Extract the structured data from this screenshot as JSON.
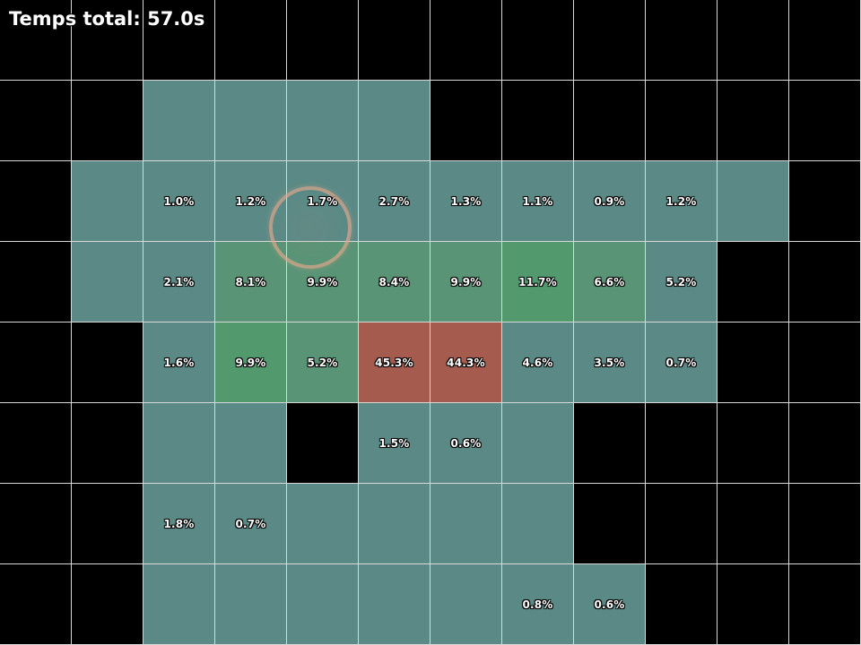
{
  "header": {
    "total_time": "Temps total: 57.0s"
  },
  "colors": {
    "empty": "#000000",
    "visited": "#5b8a86",
    "medium": "#5a9477",
    "strong": "#529a6e",
    "hot": "#a55c4e",
    "grid_line": "#d8d8d8",
    "cursor_ring": "#e8a88c"
  },
  "grid": {
    "cols": 12,
    "rows": 8,
    "cells": [
      [
        "empty",
        "empty",
        "empty",
        "empty",
        "empty",
        "empty",
        "empty",
        "empty",
        "empty",
        "empty",
        "empty",
        "empty"
      ],
      [
        "empty",
        "empty",
        "visited",
        "visited",
        "visited",
        "visited",
        "empty",
        "empty",
        "empty",
        "empty",
        "empty",
        "empty"
      ],
      [
        "empty",
        "visited",
        "visited",
        "visited",
        "visited",
        "visited",
        "visited",
        "visited",
        "visited",
        "visited",
        "visited",
        "empty"
      ],
      [
        "empty",
        "visited",
        "visited",
        "medium",
        "medium",
        "medium",
        "medium",
        "strong",
        "medium",
        "visited",
        "empty",
        "empty"
      ],
      [
        "empty",
        "empty",
        "visited",
        "strong",
        "medium",
        "hot",
        "hot",
        "visited",
        "visited",
        "visited",
        "empty",
        "empty"
      ],
      [
        "empty",
        "empty",
        "visited",
        "visited",
        "empty",
        "visited",
        "visited",
        "visited",
        "empty",
        "empty",
        "empty",
        "empty"
      ],
      [
        "empty",
        "empty",
        "visited",
        "visited",
        "visited",
        "visited",
        "visited",
        "visited",
        "empty",
        "empty",
        "empty",
        "empty"
      ],
      [
        "empty",
        "empty",
        "visited",
        "visited",
        "visited",
        "visited",
        "visited",
        "visited",
        "visited",
        "empty",
        "empty",
        "empty"
      ]
    ],
    "labels": [
      [
        "",
        "",
        "",
        "",
        "",
        "",
        "",
        "",
        "",
        "",
        "",
        ""
      ],
      [
        "",
        "",
        "",
        "",
        "",
        "",
        "",
        "",
        "",
        "",
        "",
        ""
      ],
      [
        "",
        "",
        "1.0%",
        "1.2%",
        "1.7%",
        "2.7%",
        "1.3%",
        "1.1%",
        "0.9%",
        "1.2%",
        "",
        ""
      ],
      [
        "",
        "",
        "2.1%",
        "8.1%",
        "9.9%",
        "8.4%",
        "9.9%",
        "11.7%",
        "6.6%",
        "5.2%",
        "",
        ""
      ],
      [
        "",
        "",
        "1.6%",
        "9.9%",
        "5.2%",
        "45.3%",
        "44.3%",
        "4.6%",
        "3.5%",
        "0.7%",
        "",
        ""
      ],
      [
        "",
        "",
        "",
        "",
        "",
        "1.5%",
        "0.6%",
        "",
        "",
        "",
        "",
        ""
      ],
      [
        "",
        "",
        "1.8%",
        "0.7%",
        "",
        "",
        "",
        "",
        "",
        "",
        "",
        ""
      ],
      [
        "",
        "",
        "",
        "",
        "",
        "",
        "",
        "0.8%",
        "0.6%",
        "",
        "",
        ""
      ]
    ]
  }
}
